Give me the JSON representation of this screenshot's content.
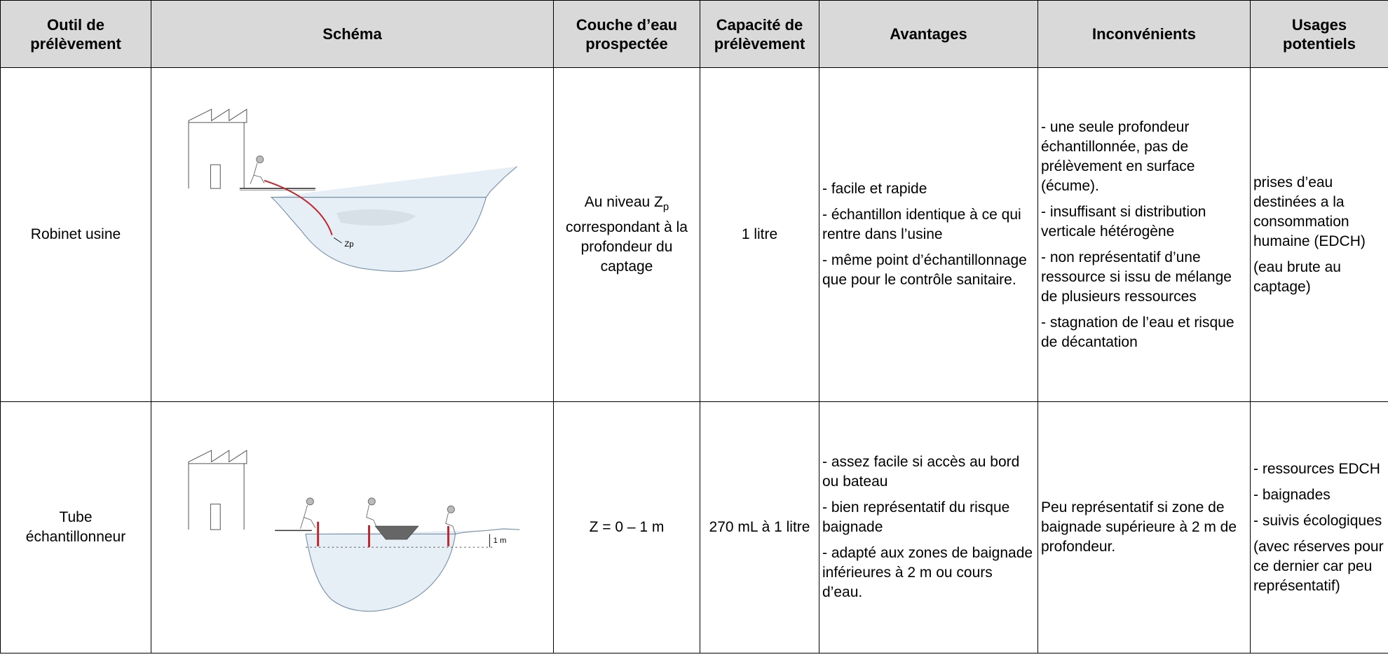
{
  "table": {
    "headers": [
      [
        "Outil de",
        "prélèvement"
      ],
      [
        "Schéma"
      ],
      [
        "Couche d’eau",
        "prospectée"
      ],
      [
        "Capacité de",
        "prélèvement"
      ],
      [
        "Avantages"
      ],
      [
        "Inconvénients"
      ],
      [
        "Usages",
        "potentiels"
      ]
    ],
    "rows": [
      {
        "tool": [
          "Robinet usine"
        ],
        "schema_label": "Zp",
        "layer": {
          "before": "Au niveau Z",
          "sub": "p",
          "after": "correspondant à la profondeur du captage"
        },
        "capacity": "1 litre",
        "advantages": [
          "- facile et rapide",
          "- échantillon identique à ce qui rentre dans l’usine",
          "- même point d’échantillonnage que pour le contrôle sanitaire."
        ],
        "drawbacks": [
          "- une seule profondeur échantillonnée, pas de prélèvement en surface (écume).",
          "- insuffisant si distribution verticale hétérogène",
          "- non représentatif d’une ressource si issu de mélange de plusieurs ressources",
          "- stagnation de l’eau et risque de décantation"
        ],
        "uses": [
          "prises d’eau destinées a la consommation humaine (EDCH)",
          "(eau brute au captage)"
        ]
      },
      {
        "tool": [
          "Tube",
          "échantillonneur"
        ],
        "schema_label": "1 m",
        "layer": {
          "before": "Z = 0 – 1 m"
        },
        "capacity": "270 mL à 1 litre",
        "advantages": [
          "- assez facile si accès au bord ou bateau",
          "- bien représentatif du risque baignade",
          "- adapté aux zones de baignade inférieures à 2 m ou cours d’eau."
        ],
        "drawbacks": [
          "Peu représentatif si zone de baignade supérieure à 2 m de profondeur."
        ],
        "uses": [
          "- ressources EDCH",
          "- baignades",
          "- suivis écologiques",
          " (avec réserves pour ce dernier car peu représentatif)"
        ]
      }
    ]
  }
}
